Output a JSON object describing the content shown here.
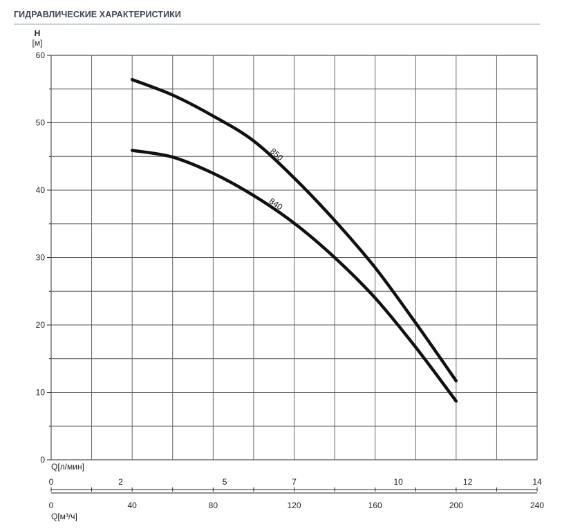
{
  "header": {
    "title": "ГИДРАВЛИЧЕСКИЕ ХАРАКТЕРИСТИКИ"
  },
  "chart_data": {
    "type": "line",
    "title": "ГИДРАВЛИЧЕСКИЕ ХАРАКТЕРИСТИКИ",
    "y_axis": {
      "label_top": "H",
      "label_unit": "[м]",
      "range": [
        0,
        60
      ],
      "ticks": [
        "0",
        "10",
        "20",
        "30",
        "40",
        "50",
        "60"
      ]
    },
    "x_axis_upper": {
      "label": "Q[л/мин]",
      "range": [
        0,
        14
      ],
      "ticks": [
        {
          "value": 0,
          "label": "0"
        },
        {
          "value": 2,
          "label": "2"
        },
        {
          "value": 5,
          "label": "5"
        },
        {
          "value": 7,
          "label": "7"
        },
        {
          "value": 10,
          "label": "10"
        },
        {
          "value": 12,
          "label": "12"
        },
        {
          "value": 14,
          "label": "14"
        }
      ]
    },
    "x_axis_lower": {
      "label": "Q[м³/ч]",
      "range": [
        0,
        240
      ],
      "ticks": [
        {
          "value": 0,
          "label": "0"
        },
        {
          "value": 40,
          "label": "40"
        },
        {
          "value": 80,
          "label": "80"
        },
        {
          "value": 120,
          "label": "120"
        },
        {
          "value": 160,
          "label": "160"
        },
        {
          "value": 200,
          "label": "200"
        },
        {
          "value": 240,
          "label": "240"
        }
      ]
    },
    "grid": true,
    "grid_x_range": [
      0,
      240
    ],
    "grid_x_step": 20,
    "grid_y_step": 5,
    "series": [
      {
        "name": "850",
        "color": "#111111",
        "points": [
          [
            40,
            56.4
          ],
          [
            60,
            54.1
          ],
          [
            80,
            51.0
          ],
          [
            100,
            47.3
          ],
          [
            120,
            41.8
          ],
          [
            140,
            35.5
          ],
          [
            160,
            28.5
          ],
          [
            180,
            20.3
          ],
          [
            200,
            11.7
          ]
        ]
      },
      {
        "name": "840",
        "color": "#111111",
        "points": [
          [
            40,
            45.9
          ],
          [
            60,
            44.9
          ],
          [
            80,
            42.5
          ],
          [
            100,
            39.2
          ],
          [
            120,
            35.1
          ],
          [
            140,
            30.0
          ],
          [
            160,
            24.0
          ],
          [
            180,
            16.7
          ],
          [
            200,
            8.7
          ]
        ]
      }
    ]
  }
}
